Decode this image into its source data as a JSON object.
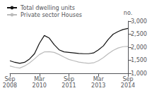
{
  "chart_data": {
    "type": "line",
    "ylabel": "no.",
    "categories": [
      "Sep\n2008",
      null,
      null,
      null,
      null,
      null,
      "Mar\n2010",
      null,
      null,
      null,
      null,
      null,
      "Sep\n2011",
      null,
      null,
      null,
      null,
      null,
      "Mar\n2013",
      null,
      null,
      null,
      null,
      null,
      "Sep\n2014"
    ],
    "series": [
      {
        "name": "Total dwelling units",
        "color": "#111111",
        "values": [
          1480,
          1420,
          1380,
          1420,
          1550,
          1750,
          2150,
          2450,
          2350,
          2100,
          1900,
          1820,
          1800,
          1780,
          1760,
          1750,
          1750,
          1780,
          1900,
          2050,
          2300,
          2500,
          2600,
          2680,
          2720
        ]
      },
      {
        "name": "Private sector Houses",
        "color": "#bbbbbb",
        "values": [
          1280,
          1230,
          1200,
          1280,
          1400,
          1550,
          1720,
          1820,
          1830,
          1800,
          1720,
          1620,
          1530,
          1480,
          1430,
          1400,
          1380,
          1400,
          1480,
          1600,
          1750,
          1880,
          1970,
          2020,
          2030
        ]
      }
    ],
    "ylim": [
      1000,
      3000
    ],
    "yticks": [
      1000,
      1500,
      2000,
      2500,
      3000
    ],
    "grid": false,
    "legend": "upper left"
  }
}
